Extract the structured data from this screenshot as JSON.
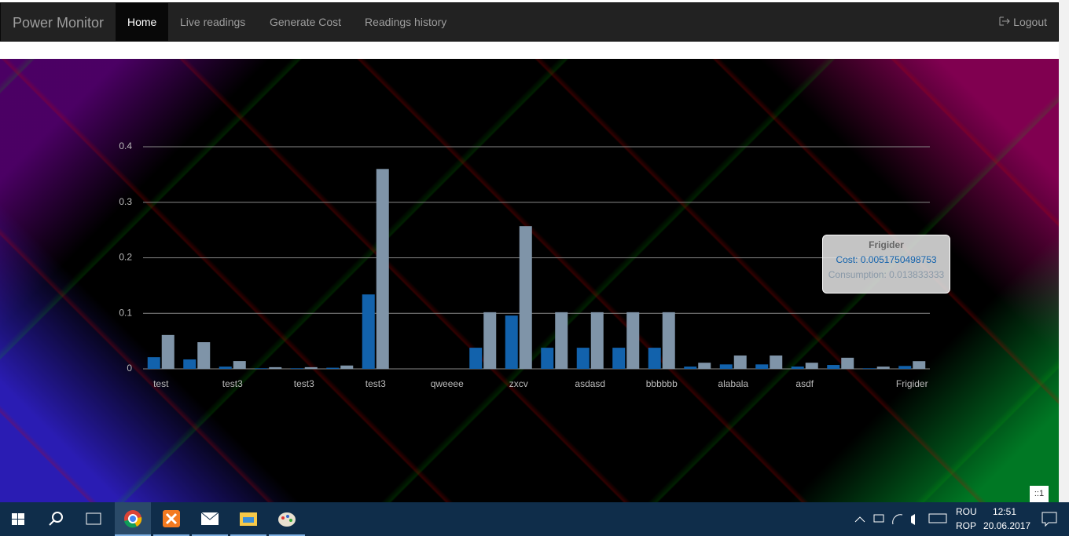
{
  "nav": {
    "brand": "Power Monitor",
    "links": [
      "Home",
      "Live readings",
      "Generate Cost",
      "Readings history"
    ],
    "active": 0,
    "logout": "Logout"
  },
  "chart_data": {
    "type": "bar",
    "categories": [
      "test",
      null,
      "test3",
      null,
      "test3",
      null,
      "test3",
      null,
      "qweeee",
      null,
      "zxcv",
      null,
      "asdasd",
      null,
      "bbbbbb",
      null,
      "alabala",
      null,
      "asdf",
      null,
      null,
      "Frigider"
    ],
    "series": [
      {
        "name": "Cost",
        "color": "#1262ac",
        "values": [
          0.021,
          0.017,
          0.004,
          0.001,
          0.001,
          0.002,
          0.134,
          0,
          0,
          0.038,
          0.096,
          0.038,
          0.038,
          0.038,
          0.038,
          0.004,
          0.008,
          0.008,
          0.004,
          0.007,
          0.001,
          0.0051750498753
        ]
      },
      {
        "name": "Consumption",
        "color": "#7f94a8",
        "values": [
          0.061,
          0.048,
          0.014,
          0.003,
          0.003,
          0.006,
          0.36,
          0,
          0,
          0.102,
          0.257,
          0.102,
          0.102,
          0.102,
          0.102,
          0.011,
          0.024,
          0.024,
          0.011,
          0.02,
          0.004,
          0.013833333
        ]
      }
    ],
    "ylim": [
      0,
      0.4
    ],
    "yticks": [
      0,
      0.1,
      0.2,
      0.3,
      0.4
    ],
    "grid": true,
    "tooltip": {
      "title": "Frigider",
      "lines": [
        "Cost: 0.0051750498753",
        "Consumption: 0.013833333"
      ]
    }
  },
  "badge": "::1",
  "taskbar": {
    "lang": [
      "ROU",
      "ROP"
    ],
    "time": "12:51",
    "date": "20.06.2017"
  }
}
